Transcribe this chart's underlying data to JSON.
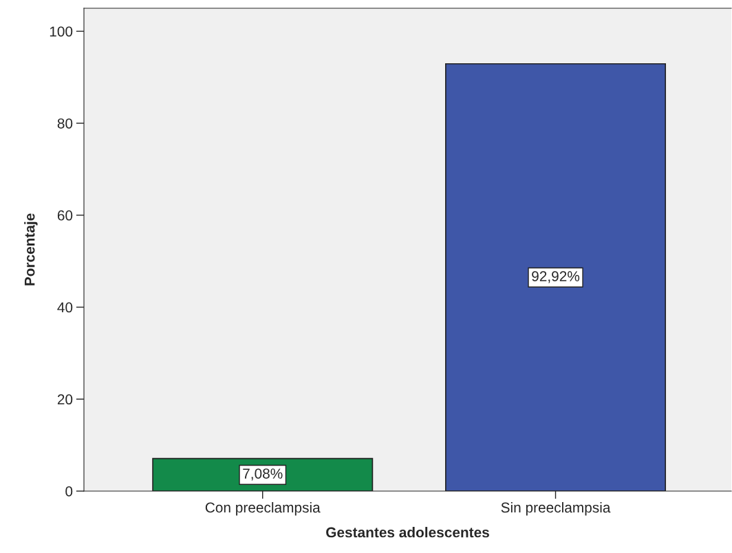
{
  "chart_data": {
    "type": "bar",
    "xlabel": "Gestantes adolescentes",
    "ylabel": "Porcentaje",
    "categories": [
      "Con preeclampsia",
      "Sin preeclampsia"
    ],
    "values": [
      7.08,
      92.92
    ],
    "colors": [
      "#138a4a",
      "#3f57a8"
    ],
    "value_labels": [
      "7,08%",
      "92,92%"
    ],
    "ylim": [
      0,
      105
    ],
    "yticks": [
      0,
      20,
      40,
      60,
      80,
      100
    ],
    "grid": false
  }
}
